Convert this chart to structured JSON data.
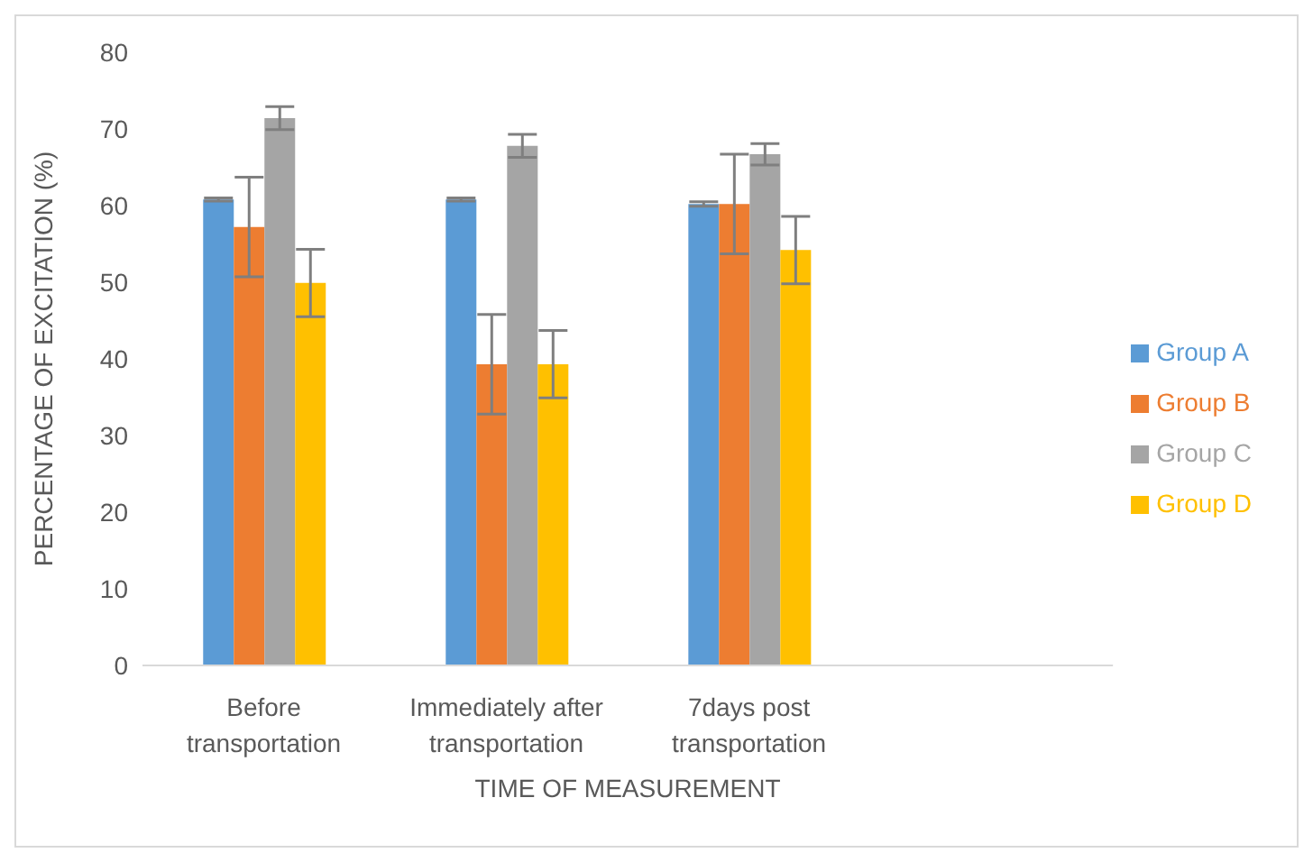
{
  "chart_data": {
    "type": "bar",
    "xlabel": "TIME OF MEASUREMENT",
    "ylabel": "PERCENTAGE OF EXCITATION (%)",
    "categories": [
      "Before transportation",
      "Immediately after transportation",
      "7days post transportation",
      null
    ],
    "series": [
      {
        "name": "Group A",
        "color": "#5b9bd5",
        "values": [
          60.8,
          60.8,
          60.2,
          null
        ],
        "errors": [
          0.2,
          0.2,
          0.3,
          null
        ]
      },
      {
        "name": "Group B",
        "color": "#ed7d31",
        "values": [
          57.2,
          39.3,
          60.2,
          null
        ],
        "errors": [
          6.5,
          6.5,
          6.5,
          null
        ]
      },
      {
        "name": "Group C",
        "color": "#a5a5a5",
        "values": [
          71.4,
          67.8,
          66.7,
          null
        ],
        "errors": [
          1.5,
          1.5,
          1.4,
          null
        ]
      },
      {
        "name": "Group D",
        "color": "#ffc000",
        "values": [
          49.9,
          39.3,
          54.2,
          null
        ],
        "errors": [
          4.4,
          4.4,
          4.4,
          null
        ]
      }
    ],
    "ylim": [
      0,
      80
    ],
    "yticks": [
      0,
      10,
      20,
      30,
      40,
      50,
      60,
      70,
      80
    ],
    "grid": false,
    "legend": "right"
  }
}
